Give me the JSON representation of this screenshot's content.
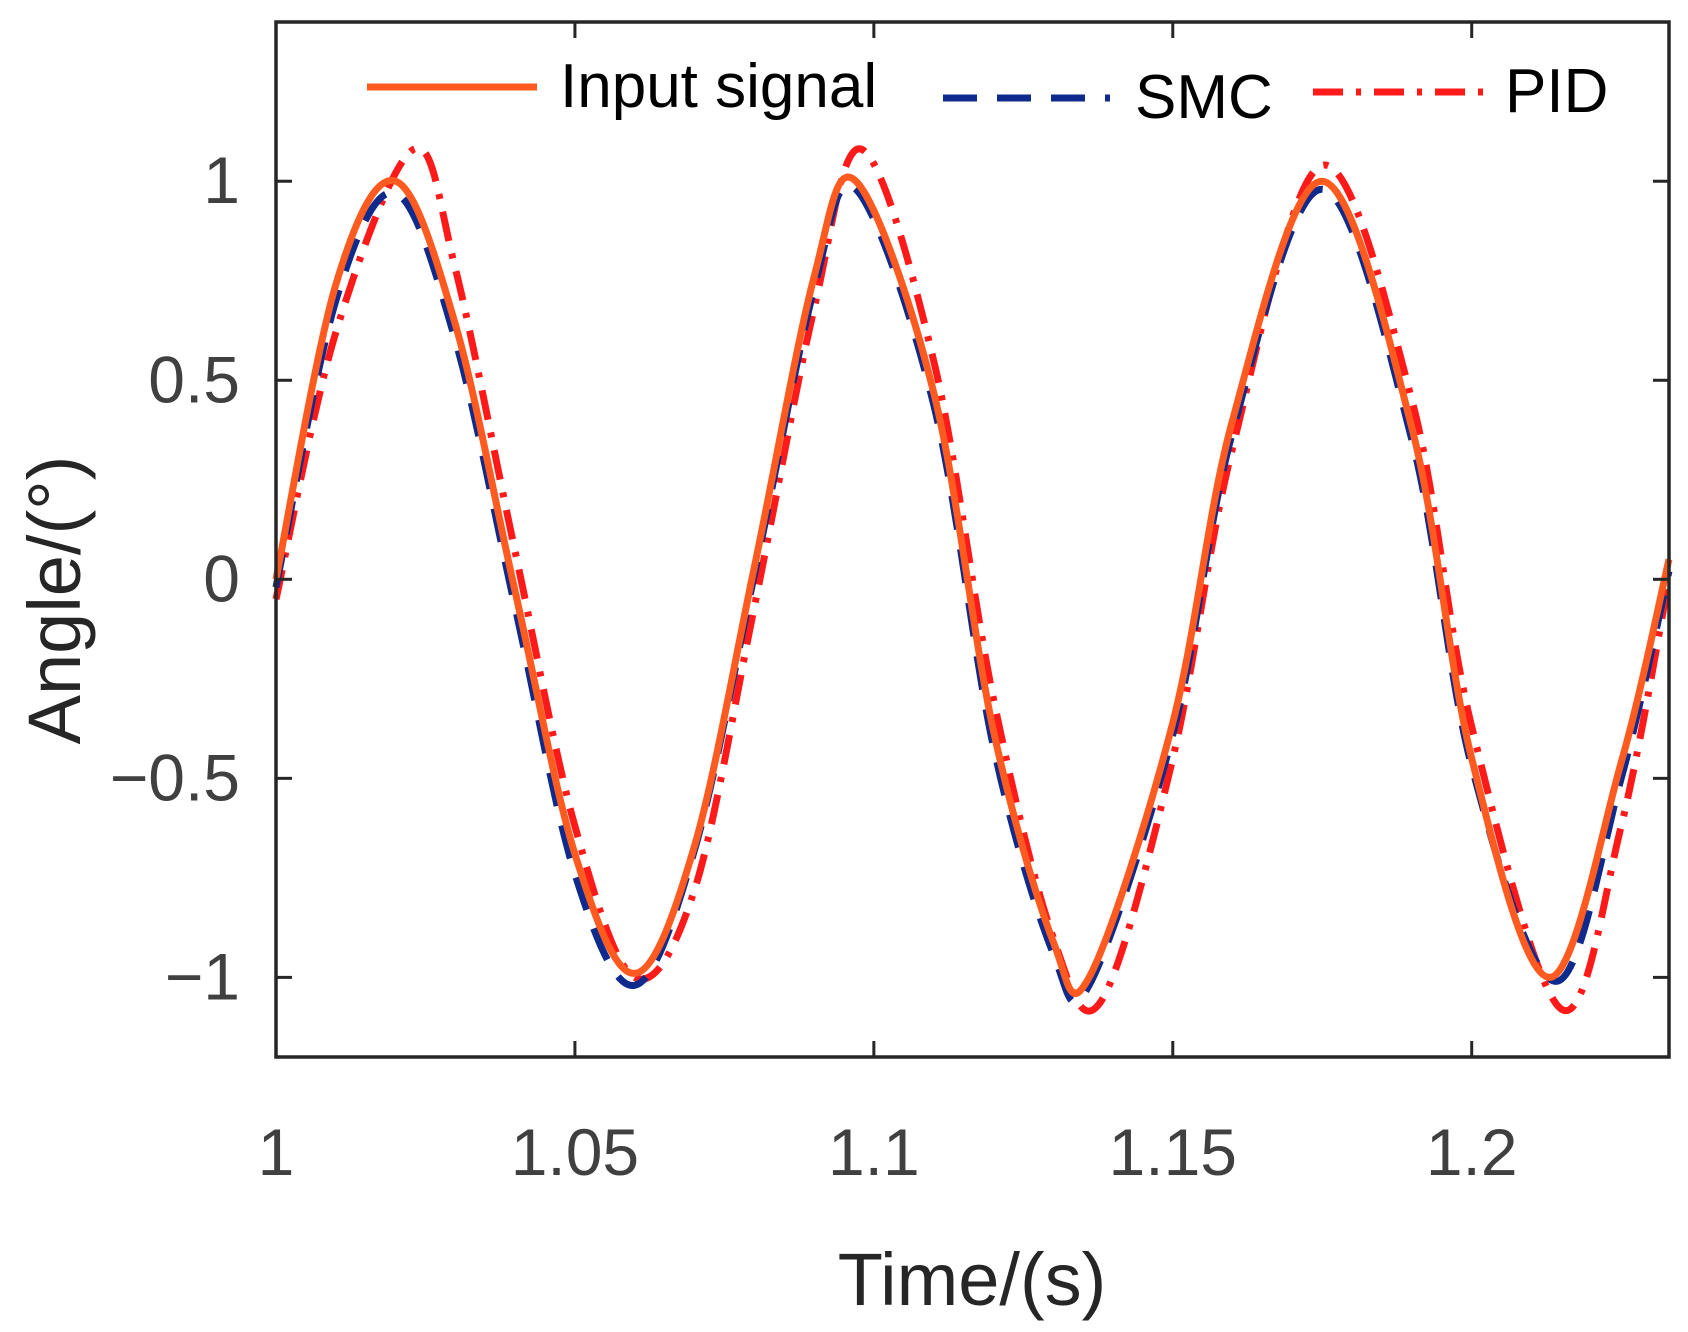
{
  "chart_data": {
    "type": "line",
    "title": "",
    "xlabel": "Time/(s)",
    "ylabel": "Angle/(°)",
    "xlim": [
      1.0,
      1.233
    ],
    "ylim": [
      -1.2,
      1.4
    ],
    "grid": false,
    "legend_position": "top",
    "x_ticks": [
      1.0,
      1.05,
      1.1,
      1.15,
      1.2
    ],
    "x_tick_labels": [
      "1",
      "1.05",
      "1.1",
      "1.15",
      "1.2"
    ],
    "y_ticks": [
      -1,
      -0.5,
      0,
      0.5,
      1
    ],
    "y_tick_labels": [
      "−1",
      "−0.5",
      "0",
      "0.5",
      "1"
    ],
    "series": [
      {
        "name": "Input signal",
        "color": "#ff5a1f",
        "style": "solid",
        "x": [
          1.0,
          1.01,
          1.02,
          1.03,
          1.04,
          1.05,
          1.06,
          1.07,
          1.08,
          1.09,
          1.097,
          1.11,
          1.12,
          1.13,
          1.136,
          1.15,
          1.16,
          1.175,
          1.19,
          1.2,
          1.213,
          1.225,
          1.233
        ],
        "values": [
          0.0,
          0.74,
          1.0,
          0.64,
          -0.03,
          -0.69,
          -0.99,
          -0.67,
          0.03,
          0.76,
          1.0,
          0.47,
          -0.38,
          -0.91,
          -1.0,
          -0.36,
          0.4,
          1.0,
          0.38,
          -0.45,
          -1.0,
          -0.46,
          0.05
        ]
      },
      {
        "name": "SMC",
        "color": "#0d2a8c",
        "style": "dashed",
        "x": [
          1.0,
          1.01,
          1.02,
          1.03,
          1.04,
          1.05,
          1.06,
          1.07,
          1.08,
          1.09,
          1.097,
          1.11,
          1.12,
          1.13,
          1.136,
          1.15,
          1.16,
          1.175,
          1.19,
          1.2,
          1.214,
          1.225,
          1.233
        ],
        "values": [
          -0.02,
          0.7,
          0.97,
          0.6,
          -0.07,
          -0.74,
          -1.02,
          -0.68,
          0.01,
          0.73,
          0.98,
          0.44,
          -0.42,
          -0.94,
          -1.02,
          -0.39,
          0.37,
          0.98,
          0.35,
          -0.47,
          -1.01,
          -0.5,
          0.02
        ]
      },
      {
        "name": "PID",
        "color": "#ff1a1a",
        "style": "dash-dot",
        "x": [
          1.0,
          1.01,
          1.023,
          1.03,
          1.04,
          1.05,
          1.06,
          1.07,
          1.08,
          1.09,
          1.098,
          1.11,
          1.12,
          1.13,
          1.138,
          1.15,
          1.16,
          1.175,
          1.19,
          1.2,
          1.215,
          1.225,
          1.233
        ],
        "values": [
          -0.05,
          0.62,
          1.08,
          0.78,
          0.07,
          -0.62,
          -1.0,
          -0.78,
          -0.07,
          0.68,
          1.08,
          0.55,
          -0.3,
          -0.9,
          -1.06,
          -0.45,
          0.33,
          1.04,
          0.45,
          -0.37,
          -1.08,
          -0.62,
          0.0
        ]
      }
    ]
  }
}
